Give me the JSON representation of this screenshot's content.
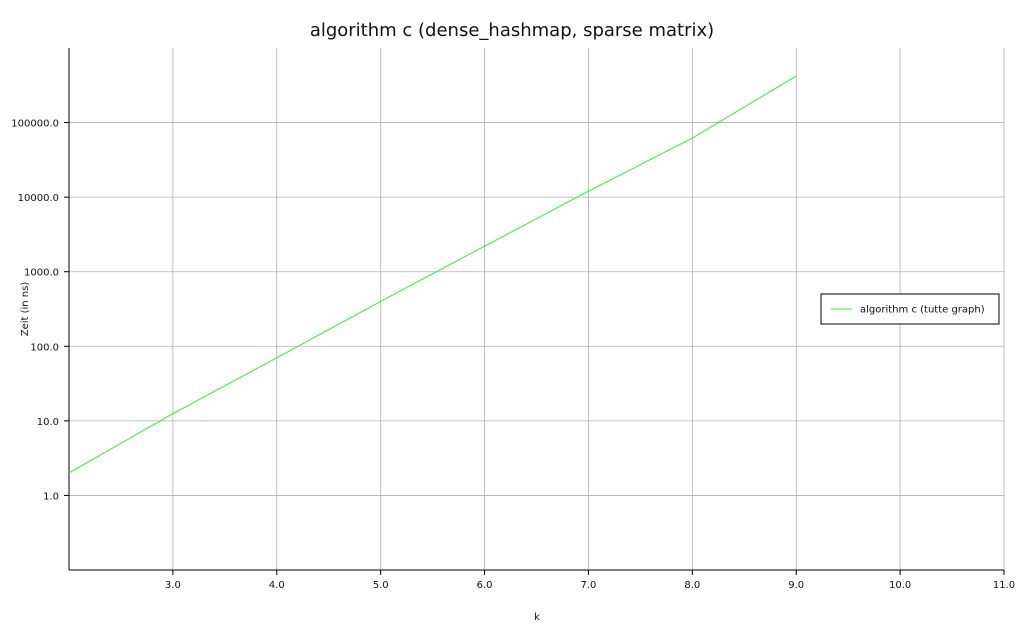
{
  "chart_data": {
    "type": "line",
    "title": "algorithm c (dense_hashmap, sparse matrix)",
    "xlabel": "k",
    "ylabel": "Zeit (in ns)",
    "xscale": "linear",
    "yscale": "log",
    "xlim": [
      2.0,
      11.0
    ],
    "ylim": [
      0.1,
      1000000.0
    ],
    "x_ticks": [
      "3.0",
      "4.0",
      "5.0",
      "6.0",
      "7.0",
      "8.0",
      "9.0",
      "10.0",
      "11.0"
    ],
    "y_ticks": [
      "1.0",
      "10.0",
      "100.0",
      "1000.0",
      "10000.0",
      "100000.0"
    ],
    "grid": true,
    "legend_position": "right",
    "series": [
      {
        "name": "algorithm c (tutte graph)",
        "color": "#33ee33",
        "x": [
          2,
          3,
          4,
          5,
          6,
          7,
          8,
          9
        ],
        "values": [
          2.0,
          12.5,
          70,
          400,
          2200,
          12000,
          62000,
          420000
        ]
      }
    ]
  }
}
